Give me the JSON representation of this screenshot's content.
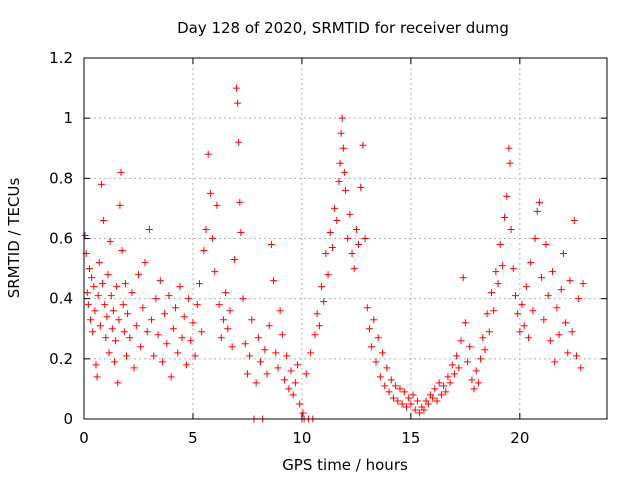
{
  "chart_data": {
    "type": "scatter",
    "title": "Day 128 of 2020, SRMTID for receiver dumg",
    "xlabel": "GPS time / hours",
    "ylabel": "SRMTID / TECUs",
    "xlim": [
      0,
      24
    ],
    "ylim": [
      0,
      1.2
    ],
    "xticks": [
      0,
      5,
      10,
      15,
      20
    ],
    "xtick_labels": [
      "0",
      "5",
      "10",
      "15",
      "20"
    ],
    "yticks": [
      0,
      0.2,
      0.4,
      0.6,
      0.8,
      1.0,
      1.2
    ],
    "ytick_labels": [
      "0",
      "0.2",
      "0.4",
      "0.6",
      "0.8",
      "1",
      "1.2"
    ],
    "grid": true,
    "marker": "+",
    "color": "#ff0000",
    "series": [
      {
        "name": "SRMTID",
        "points": [
          [
            0.05,
            0.61
          ],
          [
            0.1,
            0.55
          ],
          [
            0.15,
            0.42
          ],
          [
            0.2,
            0.38
          ],
          [
            0.25,
            0.5
          ],
          [
            0.3,
            0.33
          ],
          [
            0.35,
            0.47
          ],
          [
            0.4,
            0.29
          ],
          [
            0.45,
            0.44
          ],
          [
            0.5,
            0.36
          ],
          [
            0.55,
            0.18
          ],
          [
            0.6,
            0.14
          ],
          [
            0.65,
            0.41
          ],
          [
            0.7,
            0.52
          ],
          [
            0.75,
            0.31
          ],
          [
            0.8,
            0.78
          ],
          [
            0.85,
            0.45
          ],
          [
            0.9,
            0.66
          ],
          [
            0.95,
            0.38
          ],
          [
            1.0,
            0.27
          ],
          [
            1.05,
            0.34
          ],
          [
            1.1,
            0.48
          ],
          [
            1.15,
            0.22
          ],
          [
            1.2,
            0.59
          ],
          [
            1.25,
            0.41
          ],
          [
            1.3,
            0.3
          ],
          [
            1.35,
            0.36
          ],
          [
            1.4,
            0.19
          ],
          [
            1.45,
            0.26
          ],
          [
            1.5,
            0.44
          ],
          [
            1.55,
            0.12
          ],
          [
            1.6,
            0.33
          ],
          [
            1.65,
            0.71
          ],
          [
            1.7,
            0.82
          ],
          [
            1.75,
            0.56
          ],
          [
            1.8,
            0.38
          ],
          [
            1.85,
            0.29
          ],
          [
            1.9,
            0.45
          ],
          [
            1.95,
            0.21
          ],
          [
            2.0,
            0.35
          ],
          [
            2.1,
            0.27
          ],
          [
            2.2,
            0.42
          ],
          [
            2.3,
            0.17
          ],
          [
            2.4,
            0.31
          ],
          [
            2.5,
            0.48
          ],
          [
            2.6,
            0.24
          ],
          [
            2.7,
            0.37
          ],
          [
            2.8,
            0.52
          ],
          [
            2.9,
            0.29
          ],
          [
            3.0,
            0.63
          ],
          [
            3.1,
            0.33
          ],
          [
            3.2,
            0.21
          ],
          [
            3.3,
            0.4
          ],
          [
            3.4,
            0.28
          ],
          [
            3.5,
            0.46
          ],
          [
            3.6,
            0.19
          ],
          [
            3.7,
            0.35
          ],
          [
            3.8,
            0.25
          ],
          [
            3.9,
            0.41
          ],
          [
            4.0,
            0.14
          ],
          [
            4.1,
            0.3
          ],
          [
            4.2,
            0.37
          ],
          [
            4.3,
            0.22
          ],
          [
            4.4,
            0.44
          ],
          [
            4.5,
            0.27
          ],
          [
            4.6,
            0.34
          ],
          [
            4.7,
            0.18
          ],
          [
            4.8,
            0.4
          ],
          [
            4.9,
            0.26
          ],
          [
            5.0,
            0.32
          ],
          [
            5.1,
            0.21
          ],
          [
            5.2,
            0.38
          ],
          [
            5.3,
            0.45
          ],
          [
            5.4,
            0.29
          ],
          [
            5.5,
            0.56
          ],
          [
            5.6,
            0.63
          ],
          [
            5.7,
            0.88
          ],
          [
            5.8,
            0.75
          ],
          [
            5.9,
            0.6
          ],
          [
            6.0,
            0.49
          ],
          [
            6.1,
            0.71
          ],
          [
            6.2,
            0.38
          ],
          [
            6.3,
            0.27
          ],
          [
            6.4,
            0.33
          ],
          [
            6.5,
            0.42
          ],
          [
            6.6,
            0.3
          ],
          [
            6.7,
            0.36
          ],
          [
            6.8,
            0.24
          ],
          [
            6.9,
            0.53
          ],
          [
            7.0,
            1.1
          ],
          [
            7.05,
            1.05
          ],
          [
            7.1,
            0.92
          ],
          [
            7.15,
            0.72
          ],
          [
            7.2,
            0.62
          ],
          [
            7.3,
            0.4
          ],
          [
            7.4,
            0.25
          ],
          [
            7.5,
            0.15
          ],
          [
            7.6,
            0.21
          ],
          [
            7.7,
            0.33
          ],
          [
            7.8,
            0.0
          ],
          [
            7.9,
            0.12
          ],
          [
            8.0,
            0.27
          ],
          [
            8.1,
            0.19
          ],
          [
            8.2,
            0.0
          ],
          [
            8.3,
            0.23
          ],
          [
            8.4,
            0.15
          ],
          [
            8.5,
            0.31
          ],
          [
            8.6,
            0.58
          ],
          [
            8.7,
            0.46
          ],
          [
            8.8,
            0.22
          ],
          [
            8.9,
            0.17
          ],
          [
            9.0,
            0.36
          ],
          [
            9.1,
            0.28
          ],
          [
            9.2,
            0.13
          ],
          [
            9.3,
            0.21
          ],
          [
            9.4,
            0.1
          ],
          [
            9.5,
            0.16
          ],
          [
            9.6,
            0.08
          ],
          [
            9.7,
            0.12
          ],
          [
            9.8,
            0.18
          ],
          [
            9.9,
            0.05
          ],
          [
            10.0,
            0.0
          ],
          [
            10.05,
            0.02
          ],
          [
            10.1,
            0.0
          ],
          [
            10.2,
            0.15
          ],
          [
            10.3,
            0.0
          ],
          [
            10.4,
            0.22
          ],
          [
            10.5,
            0.0
          ],
          [
            10.6,
            0.28
          ],
          [
            10.7,
            0.35
          ],
          [
            10.8,
            0.31
          ],
          [
            10.9,
            0.44
          ],
          [
            11.0,
            0.39
          ],
          [
            11.1,
            0.55
          ],
          [
            11.2,
            0.48
          ],
          [
            11.3,
            0.62
          ],
          [
            11.4,
            0.57
          ],
          [
            11.5,
            0.7
          ],
          [
            11.6,
            0.66
          ],
          [
            11.7,
            0.79
          ],
          [
            11.75,
            0.85
          ],
          [
            11.8,
            0.95
          ],
          [
            11.85,
            1.0
          ],
          [
            11.9,
            0.9
          ],
          [
            11.95,
            0.82
          ],
          [
            12.0,
            0.76
          ],
          [
            12.1,
            0.6
          ],
          [
            12.2,
            0.68
          ],
          [
            12.3,
            0.55
          ],
          [
            12.4,
            0.5
          ],
          [
            12.5,
            0.63
          ],
          [
            12.6,
            0.58
          ],
          [
            12.7,
            0.77
          ],
          [
            12.8,
            0.91
          ],
          [
            12.9,
            0.6
          ],
          [
            13.0,
            0.37
          ],
          [
            13.1,
            0.3
          ],
          [
            13.2,
            0.24
          ],
          [
            13.3,
            0.33
          ],
          [
            13.4,
            0.19
          ],
          [
            13.5,
            0.27
          ],
          [
            13.6,
            0.14
          ],
          [
            13.7,
            0.22
          ],
          [
            13.8,
            0.11
          ],
          [
            13.9,
            0.17
          ],
          [
            14.0,
            0.09
          ],
          [
            14.1,
            0.13
          ],
          [
            14.2,
            0.07
          ],
          [
            14.3,
            0.11
          ],
          [
            14.4,
            0.06
          ],
          [
            14.5,
            0.1
          ],
          [
            14.6,
            0.05
          ],
          [
            14.7,
            0.09
          ],
          [
            14.8,
            0.04
          ],
          [
            14.9,
            0.07
          ],
          [
            15.0,
            0.05
          ],
          [
            15.1,
            0.08
          ],
          [
            15.2,
            0.03
          ],
          [
            15.3,
            0.06
          ],
          [
            15.4,
            0.02
          ],
          [
            15.5,
            0.04
          ],
          [
            15.6,
            0.03
          ],
          [
            15.7,
            0.06
          ],
          [
            15.8,
            0.05
          ],
          [
            15.9,
            0.08
          ],
          [
            16.0,
            0.07
          ],
          [
            16.1,
            0.1
          ],
          [
            16.2,
            0.06
          ],
          [
            16.3,
            0.12
          ],
          [
            16.4,
            0.08
          ],
          [
            16.5,
            0.11
          ],
          [
            16.6,
            0.09
          ],
          [
            16.7,
            0.14
          ],
          [
            16.8,
            0.12
          ],
          [
            16.9,
            0.18
          ],
          [
            17.0,
            0.15
          ],
          [
            17.1,
            0.21
          ],
          [
            17.2,
            0.17
          ],
          [
            17.3,
            0.26
          ],
          [
            17.4,
            0.47
          ],
          [
            17.5,
            0.32
          ],
          [
            17.6,
            0.19
          ],
          [
            17.7,
            0.24
          ],
          [
            17.8,
            0.13
          ],
          [
            17.9,
            0.1
          ],
          [
            18.0,
            0.16
          ],
          [
            18.1,
            0.12
          ],
          [
            18.2,
            0.2
          ],
          [
            18.3,
            0.27
          ],
          [
            18.4,
            0.23
          ],
          [
            18.5,
            0.35
          ],
          [
            18.6,
            0.29
          ],
          [
            18.7,
            0.42
          ],
          [
            18.8,
            0.36
          ],
          [
            18.9,
            0.49
          ],
          [
            19.0,
            0.45
          ],
          [
            19.1,
            0.58
          ],
          [
            19.2,
            0.51
          ],
          [
            19.3,
            0.67
          ],
          [
            19.4,
            0.74
          ],
          [
            19.5,
            0.9
          ],
          [
            19.55,
            0.85
          ],
          [
            19.6,
            0.63
          ],
          [
            19.7,
            0.5
          ],
          [
            19.8,
            0.41
          ],
          [
            19.9,
            0.35
          ],
          [
            20.0,
            0.29
          ],
          [
            20.1,
            0.38
          ],
          [
            20.2,
            0.31
          ],
          [
            20.3,
            0.44
          ],
          [
            20.4,
            0.27
          ],
          [
            20.5,
            0.52
          ],
          [
            20.6,
            0.36
          ],
          [
            20.7,
            0.6
          ],
          [
            20.8,
            0.69
          ],
          [
            20.9,
            0.72
          ],
          [
            21.0,
            0.47
          ],
          [
            21.1,
            0.33
          ],
          [
            21.2,
            0.58
          ],
          [
            21.3,
            0.41
          ],
          [
            21.4,
            0.26
          ],
          [
            21.5,
            0.49
          ],
          [
            21.6,
            0.19
          ],
          [
            21.7,
            0.37
          ],
          [
            21.8,
            0.28
          ],
          [
            21.9,
            0.43
          ],
          [
            22.0,
            0.55
          ],
          [
            22.1,
            0.32
          ],
          [
            22.2,
            0.22
          ],
          [
            22.3,
            0.46
          ],
          [
            22.4,
            0.29
          ],
          [
            22.5,
            0.66
          ],
          [
            22.6,
            0.21
          ],
          [
            22.7,
            0.4
          ],
          [
            22.8,
            0.17
          ],
          [
            22.9,
            0.45
          ]
        ]
      }
    ]
  }
}
